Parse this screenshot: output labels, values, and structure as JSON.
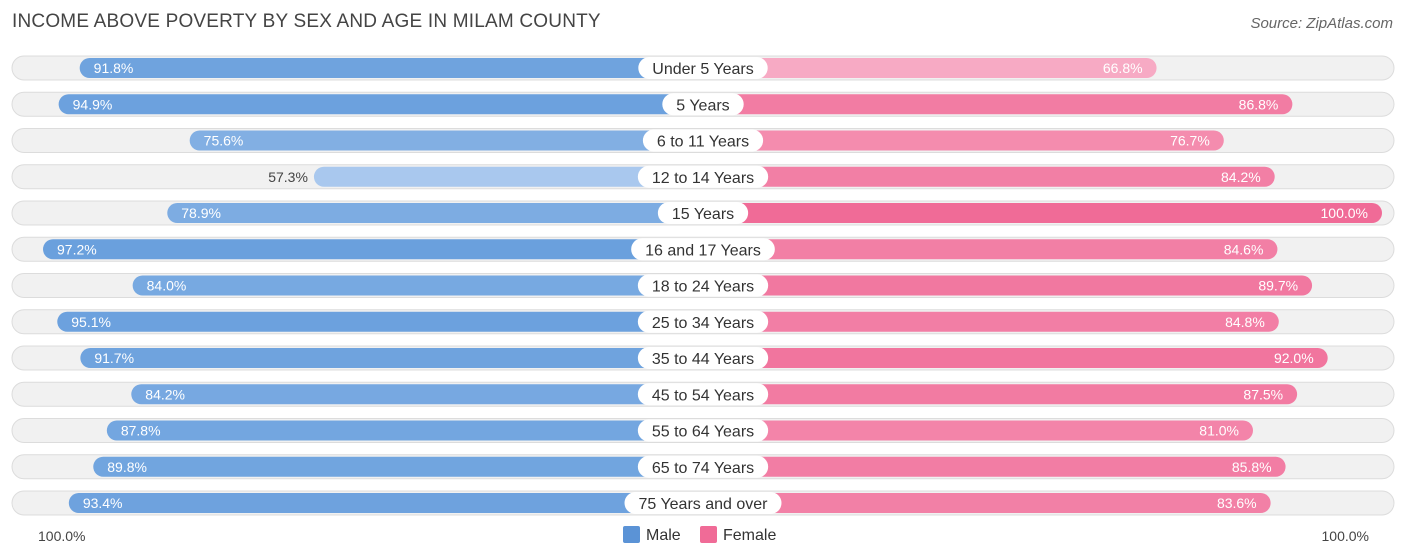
{
  "header": {
    "title": "INCOME ABOVE POVERTY BY SEX AND AGE IN MILAM COUNTY",
    "source": "Source: ZipAtlas.com"
  },
  "chart_data": {
    "type": "bar",
    "orientation": "horizontal-diverging",
    "title": "INCOME ABOVE POVERTY BY SEX AND AGE IN MILAM COUNTY",
    "categories": [
      "Under 5 Years",
      "5 Years",
      "6 to 11 Years",
      "12 to 14 Years",
      "15 Years",
      "16 and 17 Years",
      "18 to 24 Years",
      "25 to 34 Years",
      "35 to 44 Years",
      "45 to 54 Years",
      "55 to 64 Years",
      "65 to 74 Years",
      "75 Years and over"
    ],
    "series": [
      {
        "name": "Male",
        "values": [
          91.8,
          94.9,
          75.6,
          57.3,
          78.9,
          97.2,
          84.0,
          95.1,
          91.7,
          84.2,
          87.8,
          89.8,
          93.4
        ],
        "labels": [
          "91.8%",
          "94.9%",
          "75.6%",
          "57.3%",
          "78.9%",
          "97.2%",
          "84.0%",
          "95.1%",
          "91.7%",
          "84.2%",
          "87.8%",
          "89.8%",
          "93.4%"
        ]
      },
      {
        "name": "Female",
        "values": [
          66.8,
          86.8,
          76.7,
          84.2,
          100.0,
          84.6,
          89.7,
          84.8,
          92.0,
          87.5,
          81.0,
          85.8,
          83.6
        ],
        "labels": [
          "66.8%",
          "86.8%",
          "76.7%",
          "84.2%",
          "100.0%",
          "84.6%",
          "89.7%",
          "84.8%",
          "92.0%",
          "87.5%",
          "81.0%",
          "85.8%",
          "83.6%"
        ]
      }
    ],
    "xlim": [
      0,
      100
    ],
    "axis_left_label": "100.0%",
    "axis_right_label": "100.0%",
    "legend": {
      "position": "bottom-center",
      "items": [
        "Male",
        "Female"
      ]
    },
    "colors": {
      "male_dark": "#6aa0dd",
      "male_light": "#a9c8ee",
      "female_dark": "#f06b97",
      "female_light": "#f7aac4",
      "track": "#f1f1f1",
      "track_border": "#dcdcdc",
      "legend_male": "#5b93d6",
      "legend_female": "#f06b97"
    }
  }
}
